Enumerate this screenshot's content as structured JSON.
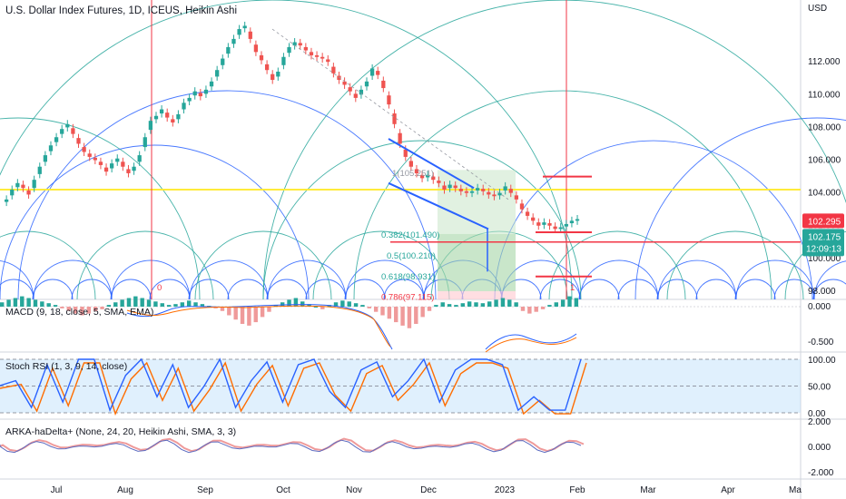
{
  "title": "U.S. Dollar Index Futures, 1D, ICEUS, Heikin Ashi",
  "indicators": {
    "macd": "MACD (9, 18, close, 5, SMA, EMA)",
    "stoch": "Stoch RSI (1, 3, 9, 14, close)",
    "arka": "ARKA-haDelta+ (None, 24, 20, Heikin Ashi, SMA, 3, 3)"
  },
  "currency": "USD",
  "last_price": "102.175",
  "countdown": "12:09:13",
  "tag_price": "102.295",
  "colors": {
    "up": "#26a69a",
    "down": "#ef5350",
    "blue": "#2962ff",
    "yellow": "#ffeb3b",
    "red_line": "#f23645"
  },
  "price_axis": [
    "98.000",
    "100.000",
    "102.000",
    "104.000",
    "106.000",
    "108.000",
    "110.000",
    "112.000"
  ],
  "macd_axis": [
    "0.000",
    "-0.500"
  ],
  "stoch_axis": [
    "100.00",
    "50.00",
    "0.00"
  ],
  "arka_axis": [
    "2.000",
    "0.000",
    "-2.000"
  ],
  "time_axis": [
    "Jul",
    "Aug",
    "Sep",
    "Oct",
    "Nov",
    "Dec",
    "2023",
    "Feb",
    "Mar",
    "Apr",
    "Ma"
  ],
  "fib_labels": [
    "0.382(101.490)",
    "0.5(100.210)",
    "0.618(98.931)",
    "0.786(97.115)",
    "1(105.251)"
  ],
  "markers": [
    "0",
    "1"
  ],
  "chart_data": {
    "type": "candlestick",
    "title": "U.S. Dollar Index Futures, 1D, ICEUS, Heikin Ashi",
    "x_ticks": [
      "Jul",
      "Aug",
      "Sep",
      "Oct",
      "Nov",
      "Dec",
      "2023",
      "Feb",
      "Mar",
      "Apr",
      "Ma"
    ],
    "ylim": [
      97.5,
      115
    ],
    "y_ticks": [
      98,
      100,
      102,
      104,
      106,
      108,
      110,
      112
    ],
    "last_price": 102.175,
    "horizontal_level": 104.2,
    "fib_levels": [
      {
        "label": "1(105.251)",
        "value": 105.251
      },
      {
        "label": "0.382(101.490)",
        "value": 101.49
      },
      {
        "label": "0.5(100.210)",
        "value": 100.21
      },
      {
        "label": "0.618(98.931)",
        "value": 98.931
      },
      {
        "label": "0.786(97.115)",
        "value": 97.115
      }
    ],
    "closes": [
      103.6,
      104.2,
      104.6,
      104.3,
      103.9,
      104.8,
      105.6,
      106.3,
      106.9,
      107.4,
      107.9,
      108.2,
      107.6,
      107.0,
      106.5,
      106.2,
      106.0,
      105.7,
      105.3,
      105.8,
      106.1,
      105.6,
      105.2,
      105.6,
      106.3,
      107.4,
      108.4,
      108.7,
      109.1,
      108.6,
      108.3,
      108.8,
      109.5,
      109.8,
      110.2,
      109.9,
      110.3,
      110.8,
      111.5,
      112.2,
      112.9,
      113.4,
      114.0,
      114.2,
      113.4,
      112.6,
      112.1,
      111.5,
      110.9,
      111.4,
      112.3,
      112.9,
      113.2,
      113.0,
      112.7,
      112.4,
      112.3,
      112.2,
      112.0,
      111.3,
      110.9,
      110.6,
      110.2,
      109.8,
      110.3,
      110.8,
      111.6,
      111.2,
      110.4,
      109.4,
      108.2,
      107.0,
      106.2,
      105.6,
      105.2,
      104.9,
      105.1,
      104.8,
      104.6,
      104.2,
      104.5,
      104.3,
      104.1,
      104.0,
      104.1,
      104.3,
      104.1,
      103.9,
      103.8,
      104.0,
      104.4,
      104.0,
      103.6,
      103.0,
      102.6,
      102.3,
      102.0,
      102.2,
      102.0,
      101.8,
      101.9,
      102.1,
      102.3,
      102.4
    ]
  },
  "macd_hist": [
    0.05,
    0.08,
    0.1,
    0.12,
    0.1,
    0.08,
    0.06,
    0.04,
    0.02,
    -0.02,
    -0.05,
    -0.08,
    -0.1,
    -0.08,
    -0.05,
    -0.03,
    0.02,
    0.05,
    0.08,
    0.1,
    0.12,
    0.1,
    0.08,
    0.06,
    0.04,
    0.02,
    0.03,
    0.05,
    0.07,
    0.05,
    0.03,
    0.01,
    -0.02,
    -0.05,
    -0.1,
    -0.15,
    -0.2,
    -0.22,
    -0.18,
    -0.12,
    -0.06,
    0.02,
    0.05,
    0.08,
    0.1,
    0.06,
    0.03,
    0.0,
    -0.03,
    0.02,
    0.05,
    0.07,
    0.06,
    0.04,
    0.02,
    -0.02,
    -0.06,
    -0.1,
    -0.14,
    -0.18,
    -0.22,
    -0.25,
    -0.2,
    -0.12,
    -0.05,
    0.02,
    0.05,
    0.03,
    0.02,
    0.04,
    0.06,
    0.05,
    0.04,
    0.06,
    0.08,
    0.1,
    0.08,
    0.05,
    -0.05,
    -0.08,
    -0.06,
    -0.03,
    0.02,
    0.05,
    0.08,
    0.12,
    0.1
  ]
}
